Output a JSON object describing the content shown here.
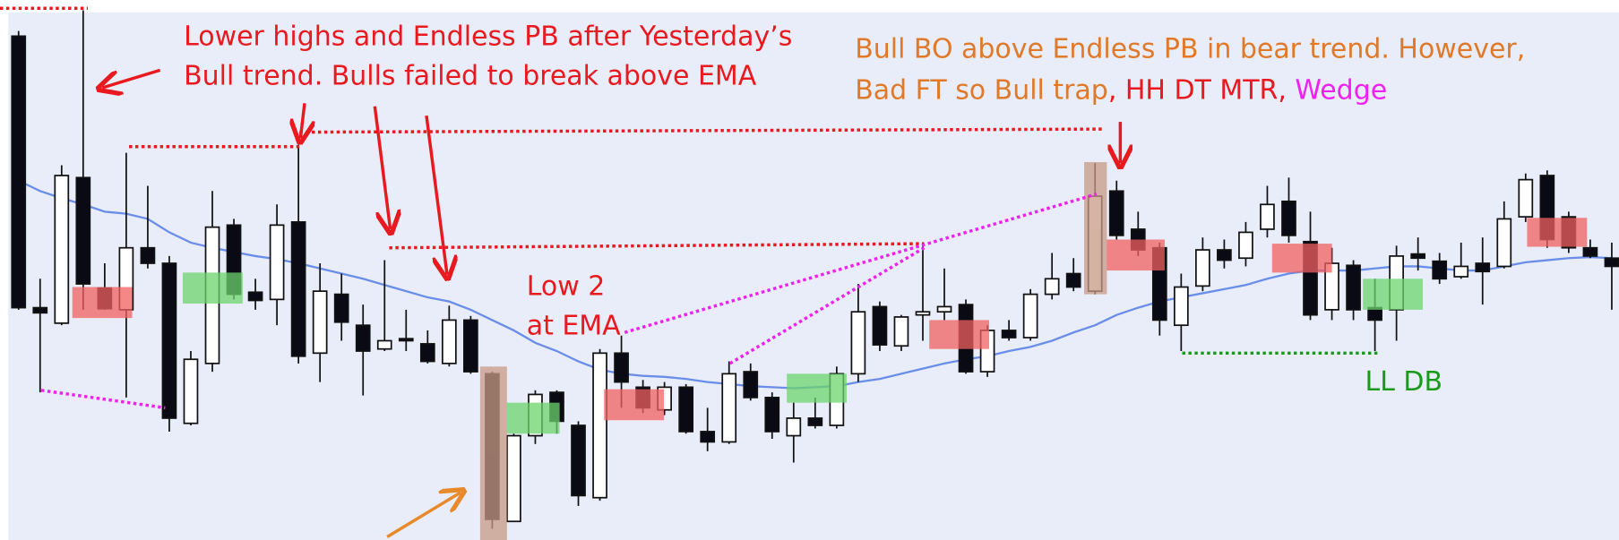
{
  "chart_data": {
    "type": "candlestick",
    "ylim": [
      0,
      523
    ],
    "open": [
      488,
      225,
      210,
      351,
      244,
      223,
      283,
      268,
      113,
      171,
      305,
      240,
      233,
      308,
      181,
      238,
      208,
      185,
      195,
      190,
      171,
      213,
      161,
      18,
      101,
      143,
      111,
      41,
      181,
      148,
      126,
      148,
      105,
      95,
      163,
      138,
      101,
      118,
      111,
      161,
      226,
      188,
      218,
      221,
      228,
      163,
      203,
      196,
      238,
      258,
      241,
      338,
      301,
      283,
      208,
      246,
      281,
      273,
      301,
      328,
      289,
      223,
      266,
      225,
      223,
      277,
      270,
      255,
      268,
      265,
      313,
      353,
      313,
      283,
      273
    ],
    "high": [
      493,
      253,
      363,
      513,
      268,
      375,
      343,
      275,
      183,
      338,
      311,
      253,
      325,
      383,
      268,
      258,
      228,
      271,
      223,
      203,
      227,
      217,
      163,
      103,
      145,
      145,
      115,
      185,
      198,
      155,
      153,
      151,
      128,
      173,
      171,
      143,
      133,
      138,
      168,
      248,
      231,
      218,
      288,
      263,
      233,
      208,
      213,
      243,
      278,
      273,
      365,
      348,
      318,
      288,
      258,
      293,
      291,
      308,
      343,
      351,
      318,
      283,
      271,
      253,
      285,
      293,
      278,
      288,
      293,
      328,
      355,
      358,
      318,
      291,
      288
    ],
    "low": [
      223,
      143,
      208,
      223,
      223,
      138,
      263,
      105,
      111,
      163,
      233,
      223,
      208,
      171,
      153,
      193,
      140,
      183,
      183,
      171,
      168,
      161,
      11,
      18,
      93,
      103,
      33,
      38,
      128,
      123,
      121,
      103,
      86,
      93,
      135,
      98,
      75,
      108,
      108,
      153,
      183,
      183,
      193,
      213,
      161,
      158,
      193,
      193,
      233,
      241,
      238,
      291,
      275,
      198,
      183,
      241,
      263,
      265,
      293,
      288,
      213,
      213,
      213,
      183,
      193,
      261,
      248,
      253,
      228,
      263,
      308,
      283,
      278,
      273,
      223
    ],
    "close": [
      225,
      220,
      353,
      248,
      224,
      283,
      268,
      118,
      175,
      303,
      238,
      232,
      305,
      178,
      241,
      211,
      183,
      193,
      193,
      173,
      213,
      163,
      20,
      101,
      141,
      115,
      43,
      181,
      153,
      128,
      148,
      105,
      95,
      161,
      138,
      105,
      118,
      111,
      161,
      221,
      189,
      216,
      221,
      226,
      163,
      203,
      196,
      238,
      253,
      245,
      333,
      295,
      281,
      213,
      245,
      281,
      271,
      298,
      325,
      295,
      218,
      268,
      223,
      213,
      275,
      273,
      253,
      265,
      260,
      311,
      349,
      291,
      283,
      275,
      265
    ],
    "ema": [
      348,
      338,
      331,
      325,
      318,
      316,
      311,
      298,
      288,
      283,
      279,
      275,
      272,
      268,
      263,
      258,
      253,
      247,
      241,
      235,
      231,
      223,
      213,
      203,
      191,
      183,
      173,
      165,
      161,
      159,
      158,
      156,
      153,
      151,
      149,
      148,
      147,
      148,
      149,
      153,
      156,
      161,
      166,
      171,
      175,
      178,
      183,
      187,
      193,
      201,
      208,
      218,
      225,
      231,
      235,
      239,
      243,
      247,
      253,
      258,
      261,
      261,
      261,
      263,
      265,
      265,
      263,
      261,
      261,
      265,
      269,
      271,
      273,
      274,
      273
    ],
    "ema_color": "#6a8ee8",
    "bull_color": "#ffffff",
    "bear_color": "#0a0a14",
    "annotations": {
      "lower_highs": [
        "Lower highs and Endless PB after Yesterday’s",
        "Bull trend. Bulls failed to break above EMA"
      ],
      "bull_bo": [
        "Bull BO above Endless PB in bear trend. However,",
        "Bad FT so Bull trap",
        ", HH DT MTR, ",
        "Wedge"
      ],
      "low2": [
        "Low 2",
        "at EMA"
      ],
      "lldb": "LL DB"
    }
  }
}
